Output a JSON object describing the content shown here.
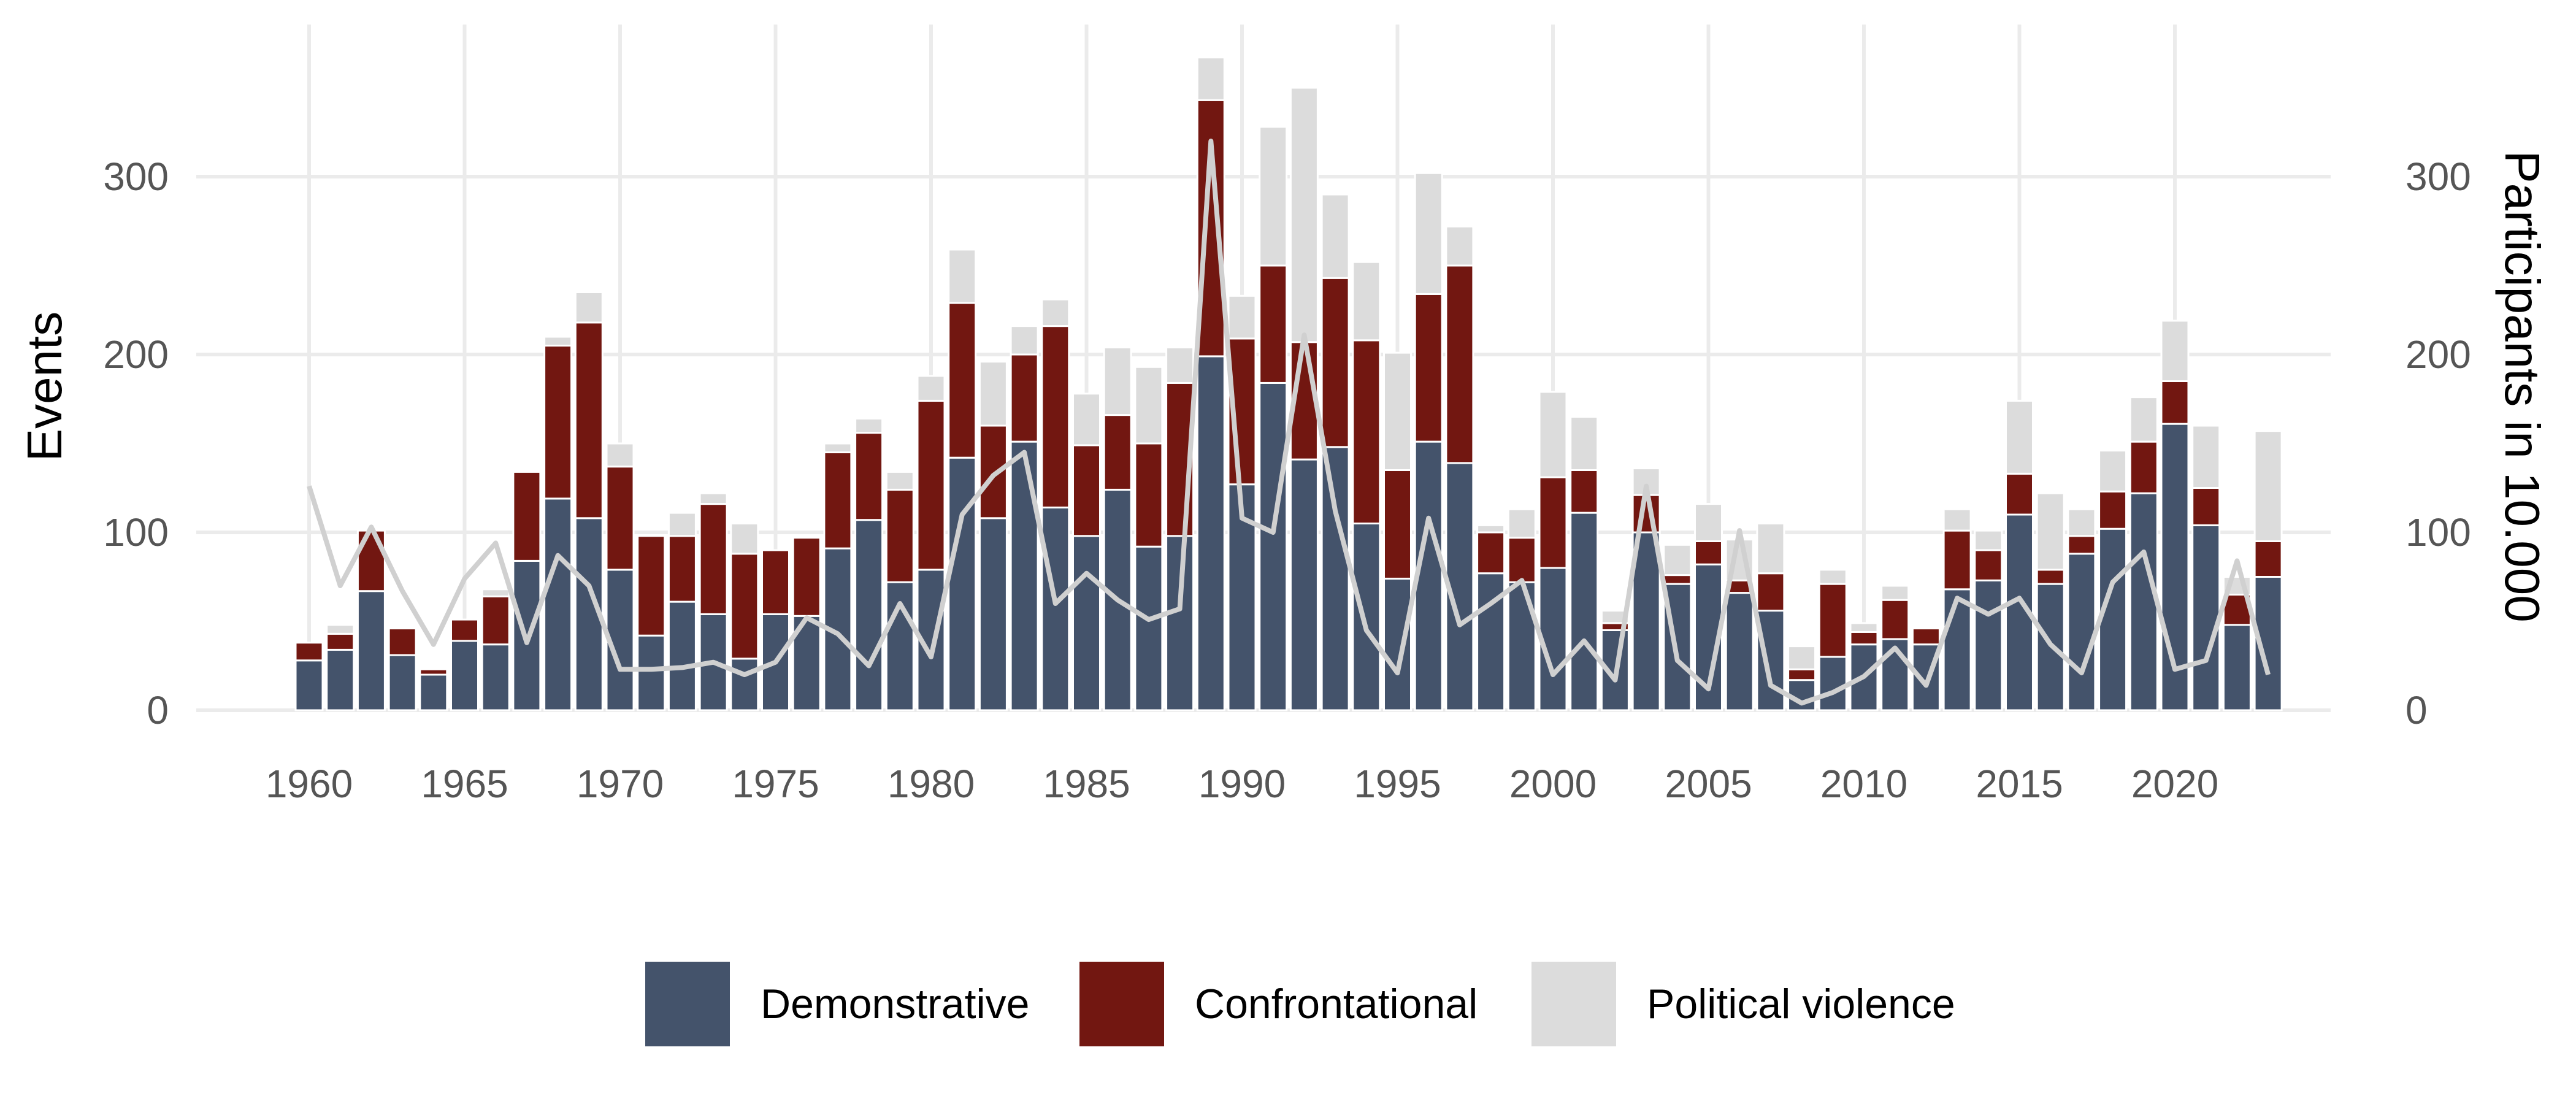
{
  "chart_data": {
    "type": "bar",
    "stacked": true,
    "title": "",
    "xlabel": "",
    "ylabel": "Events",
    "y2label": "Participants in 10.000",
    "ylim": [
      0,
      375
    ],
    "y2lim": [
      0,
      375
    ],
    "yticks": [
      0,
      100,
      200,
      300
    ],
    "xticks": [
      1960,
      1965,
      1970,
      1975,
      1980,
      1985,
      1990,
      1995,
      2000,
      2005,
      2010,
      2015,
      2020
    ],
    "grid": true,
    "legend_position": "bottom",
    "x": [
      1960,
      1961,
      1962,
      1963,
      1964,
      1965,
      1966,
      1967,
      1968,
      1969,
      1970,
      1971,
      1972,
      1973,
      1974,
      1975,
      1976,
      1977,
      1978,
      1979,
      1980,
      1981,
      1982,
      1983,
      1984,
      1985,
      1986,
      1987,
      1988,
      1989,
      1990,
      1991,
      1992,
      1993,
      1994,
      1995,
      1996,
      1997,
      1998,
      1999,
      2000,
      2001,
      2002,
      2003,
      2004,
      2005,
      2006,
      2007,
      2008,
      2009,
      2010,
      2011,
      2012,
      2013,
      2014,
      2015,
      2016,
      2017,
      2018,
      2019,
      2020,
      2021,
      2022,
      2023
    ],
    "series": [
      {
        "name": "Demonstrative",
        "color": "#44536b",
        "values": [
          28,
          34,
          67,
          31,
          20,
          39,
          37,
          84,
          119,
          108,
          79,
          42,
          61,
          54,
          29,
          54,
          53,
          91,
          107,
          72,
          79,
          142,
          108,
          151,
          114,
          98,
          124,
          92,
          98,
          199,
          127,
          184,
          141,
          148,
          105,
          74,
          151,
          139,
          77,
          72,
          80,
          111,
          45,
          100,
          71,
          82,
          66,
          56,
          17,
          30,
          37,
          40,
          37,
          68,
          73,
          110,
          71,
          88,
          102,
          122,
          161,
          104,
          48,
          75
        ]
      },
      {
        "name": "Confrontational",
        "color": "#721711",
        "values": [
          10,
          9,
          34,
          15,
          3,
          12,
          27,
          50,
          86,
          110,
          58,
          56,
          37,
          62,
          59,
          36,
          44,
          54,
          49,
          52,
          95,
          87,
          52,
          49,
          102,
          51,
          42,
          58,
          86,
          144,
          82,
          66,
          66,
          95,
          103,
          61,
          83,
          111,
          23,
          25,
          51,
          24,
          4,
          21,
          5,
          13,
          7,
          21,
          6,
          41,
          7,
          22,
          9,
          33,
          17,
          23,
          8,
          10,
          21,
          29,
          24,
          21,
          17,
          20
        ]
      },
      {
        "name": "Political violence",
        "color": "#dcdcdc",
        "values": [
          0,
          5,
          0,
          0,
          0,
          0,
          4,
          0,
          5,
          17,
          13,
          0,
          13,
          6,
          17,
          0,
          0,
          5,
          8,
          10,
          14,
          30,
          36,
          16,
          15,
          29,
          38,
          43,
          20,
          24,
          24,
          78,
          143,
          47,
          44,
          66,
          68,
          22,
          4,
          16,
          48,
          30,
          7,
          15,
          17,
          21,
          23,
          28,
          13,
          8,
          5,
          8,
          0,
          12,
          11,
          41,
          43,
          15,
          23,
          25,
          34,
          35,
          10,
          62
        ]
      },
      {
        "name": "Participants",
        "axis": "right",
        "type": "line",
        "color": "#d0d0d0",
        "values": [
          126,
          70,
          103,
          67,
          37,
          74,
          94,
          38,
          87,
          70,
          23,
          23,
          24,
          27,
          20,
          27,
          52,
          43,
          25,
          60,
          30,
          110,
          132,
          145,
          60,
          77,
          62,
          51,
          57,
          320,
          108,
          100,
          211,
          112,
          45,
          21,
          108,
          48,
          60,
          73,
          20,
          39,
          17,
          126,
          28,
          12,
          101,
          14,
          4,
          10,
          19,
          35,
          14,
          63,
          54,
          63,
          37,
          21,
          72,
          89,
          23,
          28,
          84,
          20
        ]
      }
    ]
  },
  "legend": {
    "items": [
      {
        "label": "Demonstrative",
        "color": "#44536b"
      },
      {
        "label": "Confrontational",
        "color": "#721711"
      },
      {
        "label": "Political violence",
        "color": "#dcdcdc"
      }
    ]
  }
}
